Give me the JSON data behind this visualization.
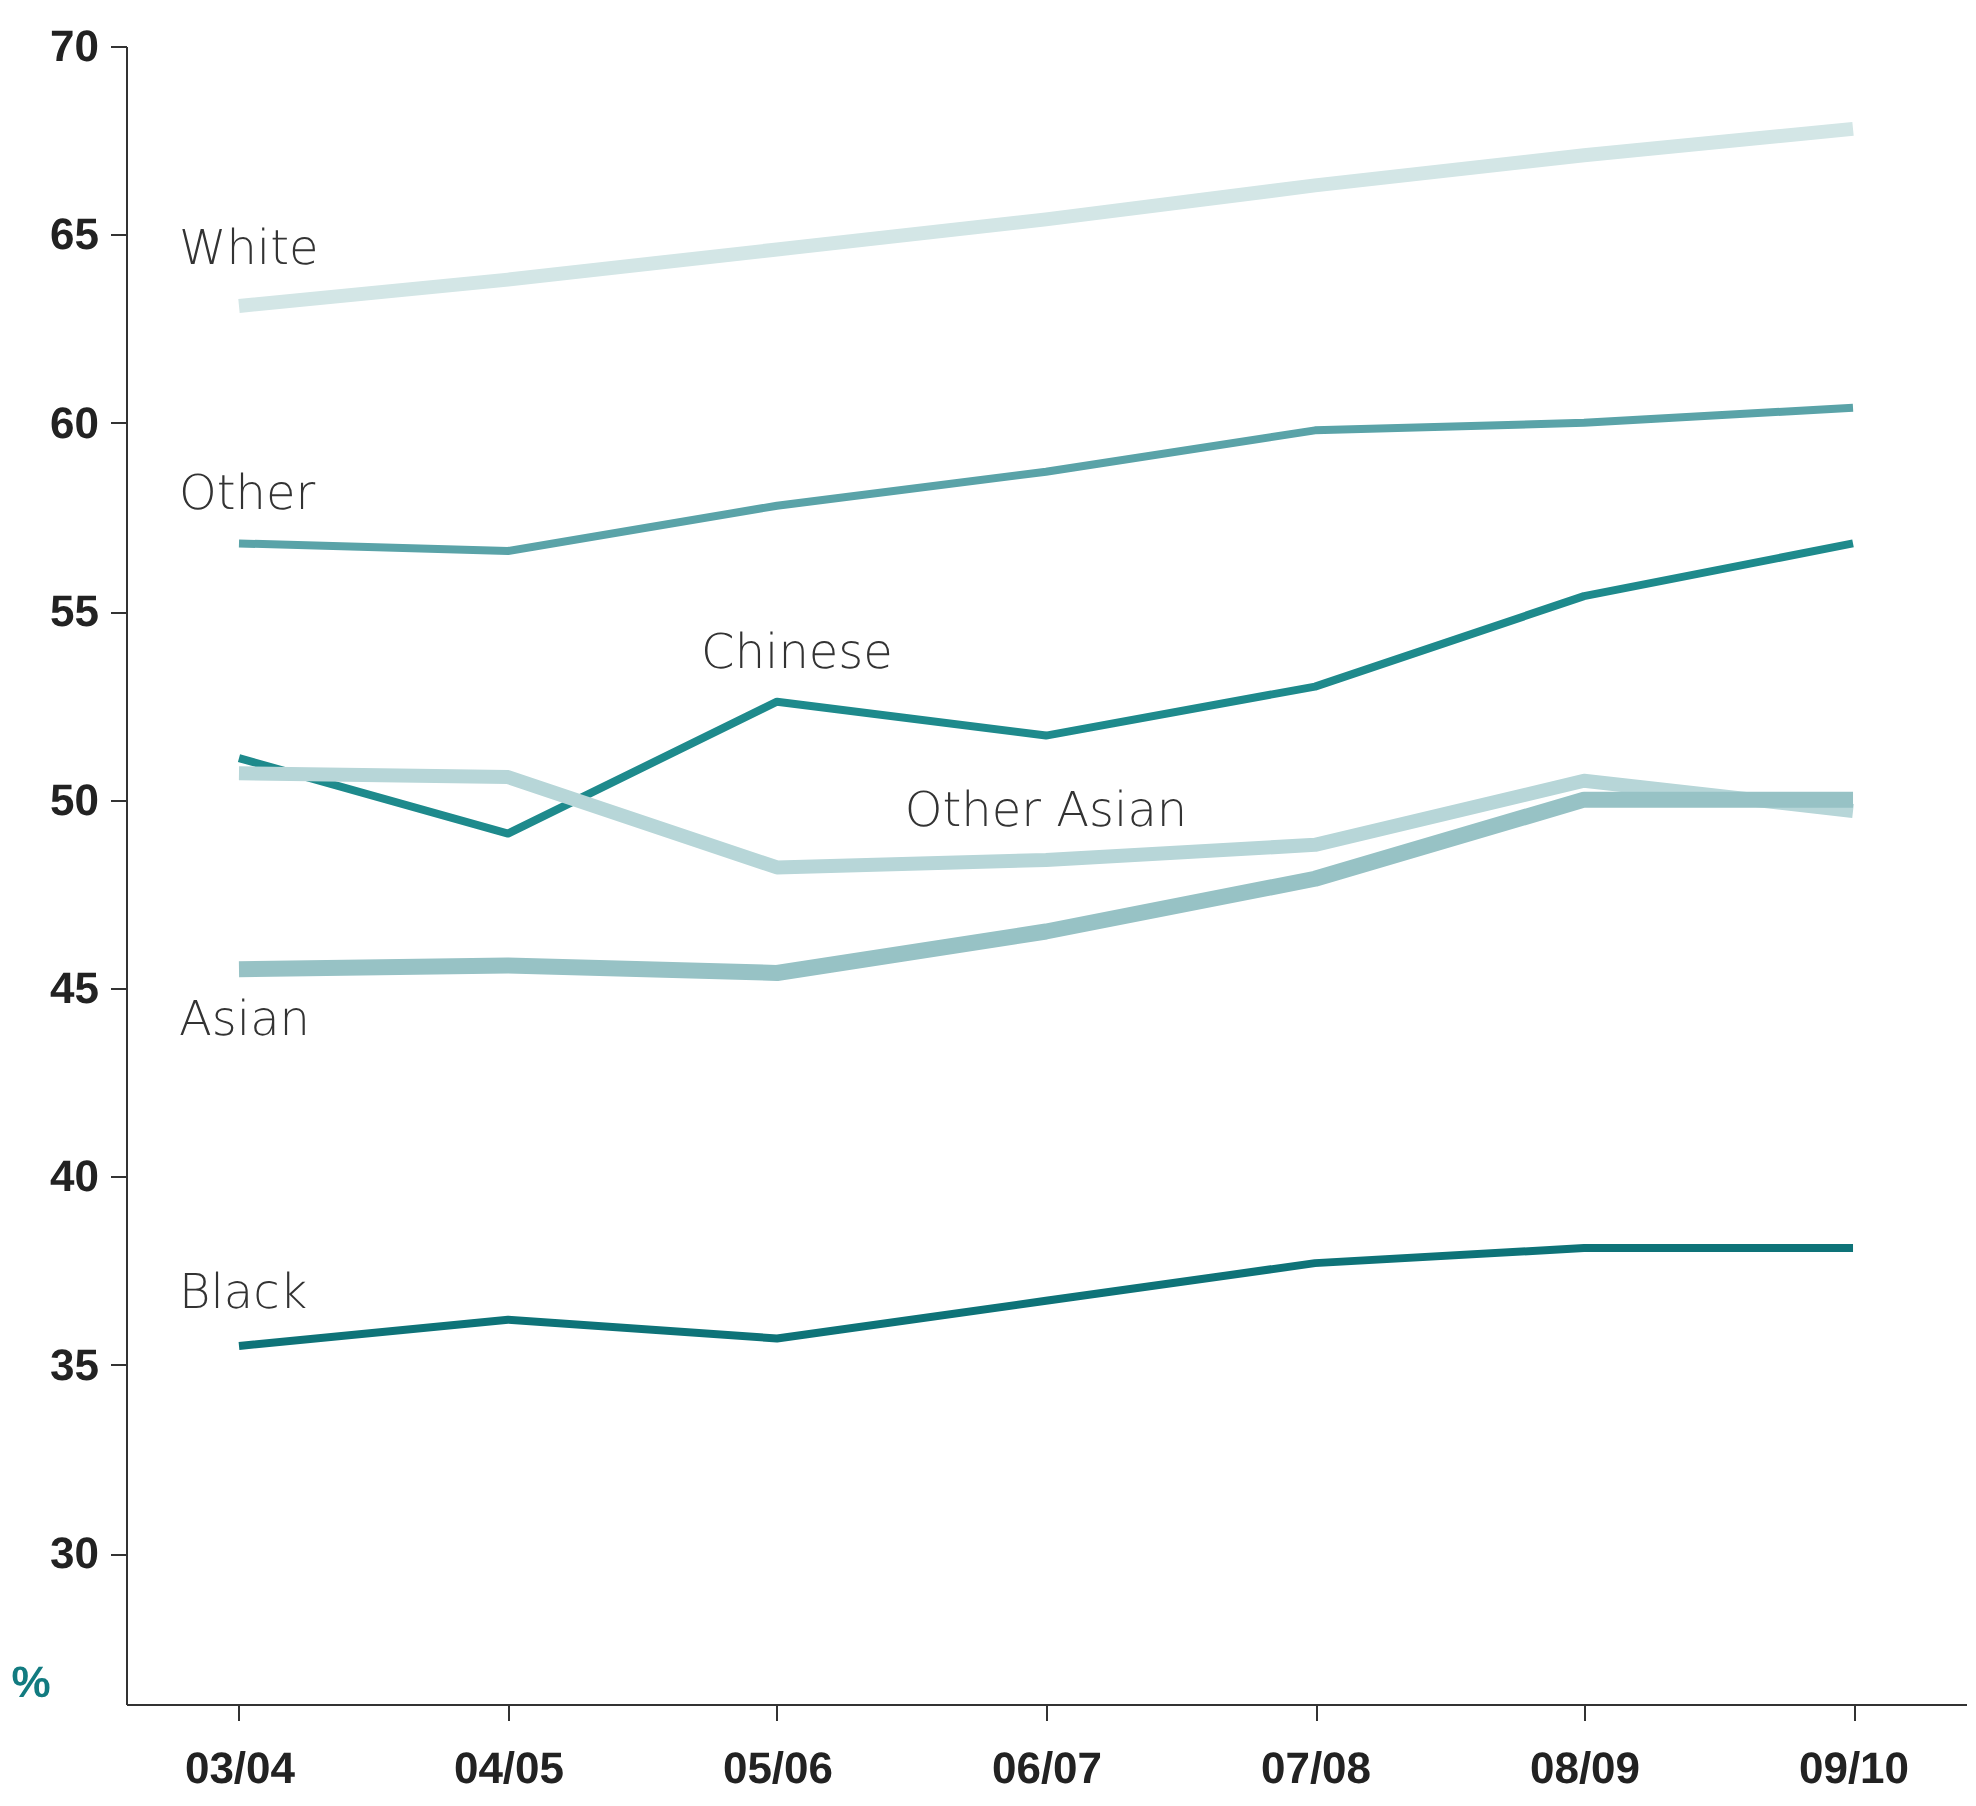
{
  "chart_data": {
    "type": "line",
    "ylabel": "%",
    "categories": [
      "03/04",
      "04/05",
      "05/06",
      "06/07",
      "07/08",
      "08/09",
      "09/10"
    ],
    "series": [
      {
        "name": "White",
        "color": "#d3e6e6",
        "values": [
          63.1,
          63.8,
          64.6,
          65.4,
          66.3,
          67.1,
          67.8
        ]
      },
      {
        "name": "Other",
        "color": "#5aa3a8",
        "values": [
          56.8,
          56.6,
          57.8,
          58.7,
          59.8,
          60.0,
          60.4
        ]
      },
      {
        "name": "Chinese",
        "color": "#1e8a8c",
        "values": [
          51.1,
          49.1,
          52.6,
          51.7,
          53.0,
          55.4,
          56.8
        ]
      },
      {
        "name": "Other Asian",
        "color": "#b7d6d8",
        "values": [
          50.7,
          50.6,
          48.2,
          48.4,
          48.8,
          50.5,
          49.7
        ]
      },
      {
        "name": "Asian",
        "color": "#97c2c5",
        "values": [
          45.5,
          45.6,
          45.4,
          46.5,
          47.9,
          50.0,
          50.0
        ]
      },
      {
        "name": "Black",
        "color": "#0e7378",
        "values": [
          35.5,
          36.2,
          35.7,
          36.7,
          37.7,
          38.1,
          38.1
        ]
      }
    ],
    "ylim": [
      26,
      70
    ],
    "yticks": [
      30,
      35,
      40,
      45,
      50,
      55,
      60,
      65,
      70
    ],
    "grid": false,
    "marker": "none",
    "line_style": "solid"
  }
}
